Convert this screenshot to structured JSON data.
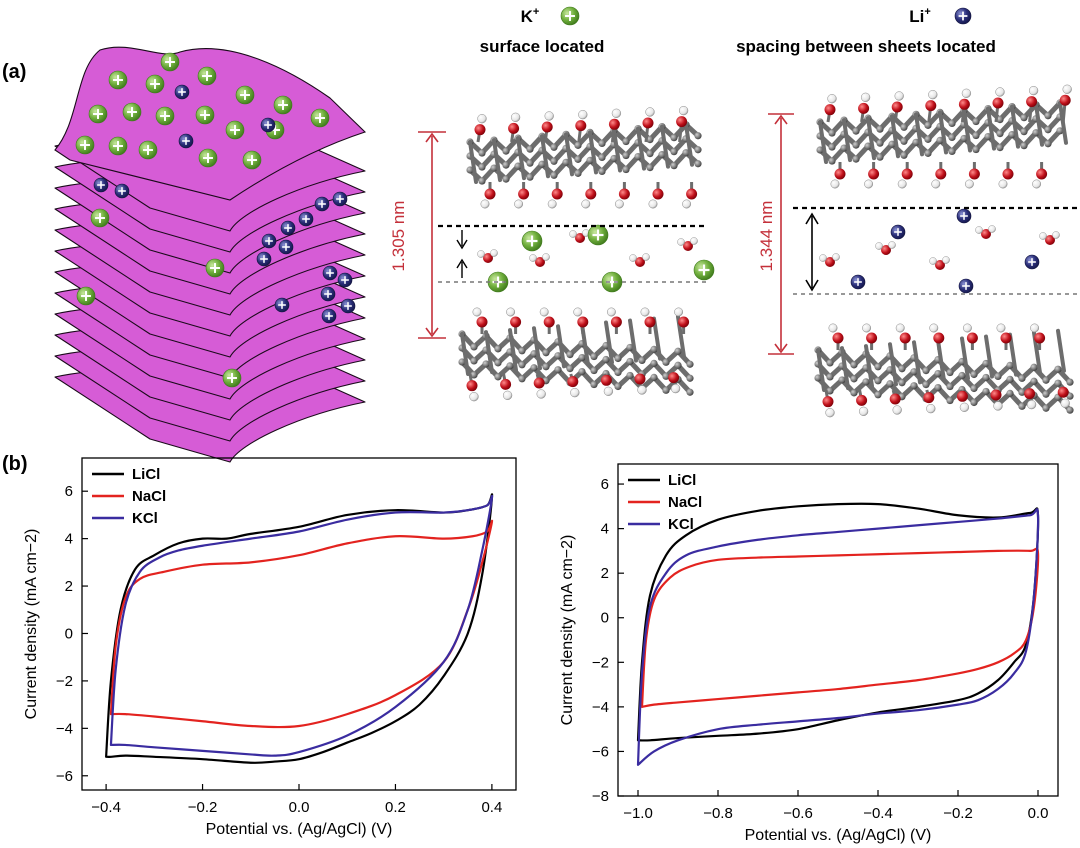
{
  "panel_a": {
    "label": "(a)",
    "k_title": "K",
    "k_sup": "+",
    "k_subtitle": "surface located",
    "li_title": "Li",
    "li_sup": "+",
    "li_subtitle": "spacing between sheets located",
    "k_spacing": "1.305 nm",
    "li_spacing": "1.344 nm",
    "ion_colors": {
      "k": "#6fae3c",
      "li": "#2b2f7a",
      "sheet": "#d65cd6",
      "oxygen": "#c0101a",
      "carbon": "#7a7a7a",
      "dimension": "#c4303a"
    }
  },
  "panel_b": {
    "label": "(b)",
    "series_colors": {
      "LiCl": "#000000",
      "NaCl": "#e3231f",
      "KCl": "#3a2ca0"
    }
  },
  "chart_data": [
    {
      "type": "line",
      "xlabel": "Potential vs. (Ag/AgCl) (V)",
      "ylabel": "Current density (mA cm−2)",
      "xlim": [
        -0.45,
        0.45
      ],
      "ylim": [
        -6.6,
        7.4
      ],
      "xticks": [
        -0.4,
        -0.2,
        0.0,
        0.2,
        0.4
      ],
      "xtick_labels": [
        "−0.4",
        "−0.2",
        "0.0",
        "0.2",
        "0.4"
      ],
      "yticks": [
        -6,
        -4,
        -2,
        0,
        2,
        4,
        6
      ],
      "ytick_labels": [
        "−6",
        "−4",
        "−2",
        "0",
        "2",
        "4",
        "6"
      ],
      "legend_position": "top-left",
      "series": [
        {
          "name": "LiCl",
          "color": "#000000",
          "x": [
            -0.4,
            -0.39,
            -0.37,
            -0.34,
            -0.3,
            -0.25,
            -0.2,
            -0.15,
            -0.1,
            0.0,
            0.1,
            0.2,
            0.3,
            0.35,
            0.39,
            0.4,
            0.38,
            0.35,
            0.3,
            0.25,
            0.2,
            0.15,
            0.1,
            0.05,
            0.0,
            -0.05,
            -0.1,
            -0.2,
            -0.3,
            -0.36,
            -0.39,
            -0.4
          ],
          "y": [
            -5.2,
            -2.0,
            1.0,
            2.7,
            3.3,
            3.8,
            4.0,
            4.0,
            4.2,
            4.5,
            5.0,
            5.2,
            5.1,
            5.2,
            5.4,
            5.7,
            2.5,
            0.0,
            -1.8,
            -3.0,
            -3.7,
            -4.2,
            -4.6,
            -5.0,
            -5.3,
            -5.4,
            -5.45,
            -5.3,
            -5.2,
            -5.15,
            -5.2,
            -5.2
          ]
        },
        {
          "name": "NaCl",
          "color": "#e3231f",
          "x": [
            -0.39,
            -0.38,
            -0.36,
            -0.33,
            -0.28,
            -0.2,
            -0.1,
            0.0,
            0.1,
            0.2,
            0.3,
            0.36,
            0.39,
            0.4,
            0.38,
            0.35,
            0.3,
            0.2,
            0.1,
            0.0,
            -0.1,
            -0.2,
            -0.3,
            -0.36,
            -0.39
          ],
          "y": [
            -3.4,
            -0.5,
            1.5,
            2.3,
            2.6,
            2.9,
            3.0,
            3.3,
            3.8,
            4.1,
            4.0,
            4.1,
            4.3,
            4.7,
            3.0,
            1.0,
            -1.2,
            -2.6,
            -3.4,
            -3.9,
            -3.9,
            -3.7,
            -3.5,
            -3.4,
            -3.4
          ]
        },
        {
          "name": "KCl",
          "color": "#3a2ca0",
          "x": [
            -0.39,
            -0.38,
            -0.36,
            -0.33,
            -0.29,
            -0.25,
            -0.2,
            -0.1,
            0.0,
            0.1,
            0.2,
            0.3,
            0.35,
            0.39,
            0.4,
            0.38,
            0.35,
            0.3,
            0.2,
            0.1,
            0.0,
            -0.05,
            -0.1,
            -0.2,
            -0.3,
            -0.36,
            -0.39
          ],
          "y": [
            -4.7,
            -1.5,
            1.2,
            2.6,
            3.2,
            3.5,
            3.7,
            4.0,
            4.3,
            4.8,
            5.1,
            5.1,
            5.2,
            5.4,
            5.7,
            3.5,
            1.0,
            -1.2,
            -3.1,
            -4.3,
            -5.0,
            -5.15,
            -5.1,
            -4.95,
            -4.8,
            -4.7,
            -4.7
          ]
        }
      ]
    },
    {
      "type": "line",
      "xlabel": "Potential vs. (Ag/AgCl) (V)",
      "ylabel": "Current density (mA cm−2)",
      "xlim": [
        -1.05,
        0.05
      ],
      "ylim": [
        -8,
        6.9
      ],
      "xticks": [
        -1.0,
        -0.8,
        -0.6,
        -0.4,
        -0.2,
        0.0
      ],
      "xtick_labels": [
        "−1.0",
        "−0.8",
        "−0.6",
        "−0.4",
        "−0.2",
        "0.0"
      ],
      "yticks": [
        -8,
        -6,
        -4,
        -2,
        0,
        2,
        4,
        6
      ],
      "ytick_labels": [
        "−8",
        "−6",
        "−4",
        "−2",
        "0",
        "2",
        "4",
        "6"
      ],
      "legend_position": "top-left",
      "series": [
        {
          "name": "LiCl",
          "color": "#000000",
          "x": [
            -1.0,
            -0.99,
            -0.97,
            -0.93,
            -0.88,
            -0.8,
            -0.7,
            -0.6,
            -0.5,
            -0.4,
            -0.3,
            -0.2,
            -0.1,
            -0.02,
            0.0,
            -0.01,
            -0.03,
            -0.06,
            -0.1,
            -0.15,
            -0.2,
            -0.3,
            -0.4,
            -0.5,
            -0.6,
            -0.7,
            -0.8,
            -0.9,
            -0.97,
            -1.0
          ],
          "y": [
            -5.5,
            -2.0,
            1.0,
            2.8,
            3.7,
            4.4,
            4.8,
            5.0,
            5.1,
            5.1,
            4.9,
            4.6,
            4.5,
            4.7,
            4.6,
            1.0,
            -1.2,
            -2.0,
            -2.8,
            -3.4,
            -3.7,
            -4.0,
            -4.25,
            -4.6,
            -5.0,
            -5.2,
            -5.3,
            -5.4,
            -5.5,
            -5.5
          ]
        },
        {
          "name": "NaCl",
          "color": "#e3231f",
          "x": [
            -0.99,
            -0.98,
            -0.96,
            -0.92,
            -0.87,
            -0.8,
            -0.7,
            -0.6,
            -0.5,
            -0.4,
            -0.3,
            -0.2,
            -0.1,
            -0.02,
            0.0,
            -0.01,
            -0.03,
            -0.06,
            -0.1,
            -0.15,
            -0.2,
            -0.3,
            -0.4,
            -0.5,
            -0.6,
            -0.7,
            -0.8,
            -0.9,
            -0.96,
            -0.99
          ],
          "y": [
            -4.0,
            -1.0,
            0.8,
            1.8,
            2.3,
            2.6,
            2.7,
            2.75,
            2.8,
            2.85,
            2.9,
            2.95,
            3.0,
            3.0,
            2.9,
            0.5,
            -1.0,
            -1.6,
            -2.0,
            -2.3,
            -2.5,
            -2.8,
            -3.0,
            -3.2,
            -3.35,
            -3.5,
            -3.65,
            -3.8,
            -3.9,
            -4.0
          ]
        },
        {
          "name": "KCl",
          "color": "#3a2ca0",
          "x": [
            -1.0,
            -0.99,
            -0.97,
            -0.93,
            -0.88,
            -0.8,
            -0.7,
            -0.6,
            -0.5,
            -0.4,
            -0.3,
            -0.2,
            -0.1,
            -0.02,
            0.0,
            -0.01,
            -0.03,
            -0.06,
            -0.1,
            -0.15,
            -0.2,
            -0.3,
            -0.4,
            -0.5,
            -0.6,
            -0.7,
            -0.8,
            -0.9,
            -0.96,
            -1.0
          ],
          "y": [
            -6.6,
            -2.5,
            0.5,
            2.0,
            2.8,
            3.2,
            3.5,
            3.7,
            3.85,
            4.0,
            4.15,
            4.3,
            4.45,
            4.6,
            4.6,
            1.0,
            -1.5,
            -2.5,
            -3.2,
            -3.7,
            -3.9,
            -4.15,
            -4.3,
            -4.5,
            -4.65,
            -4.8,
            -5.0,
            -5.5,
            -6.0,
            -6.6
          ]
        }
      ]
    }
  ]
}
